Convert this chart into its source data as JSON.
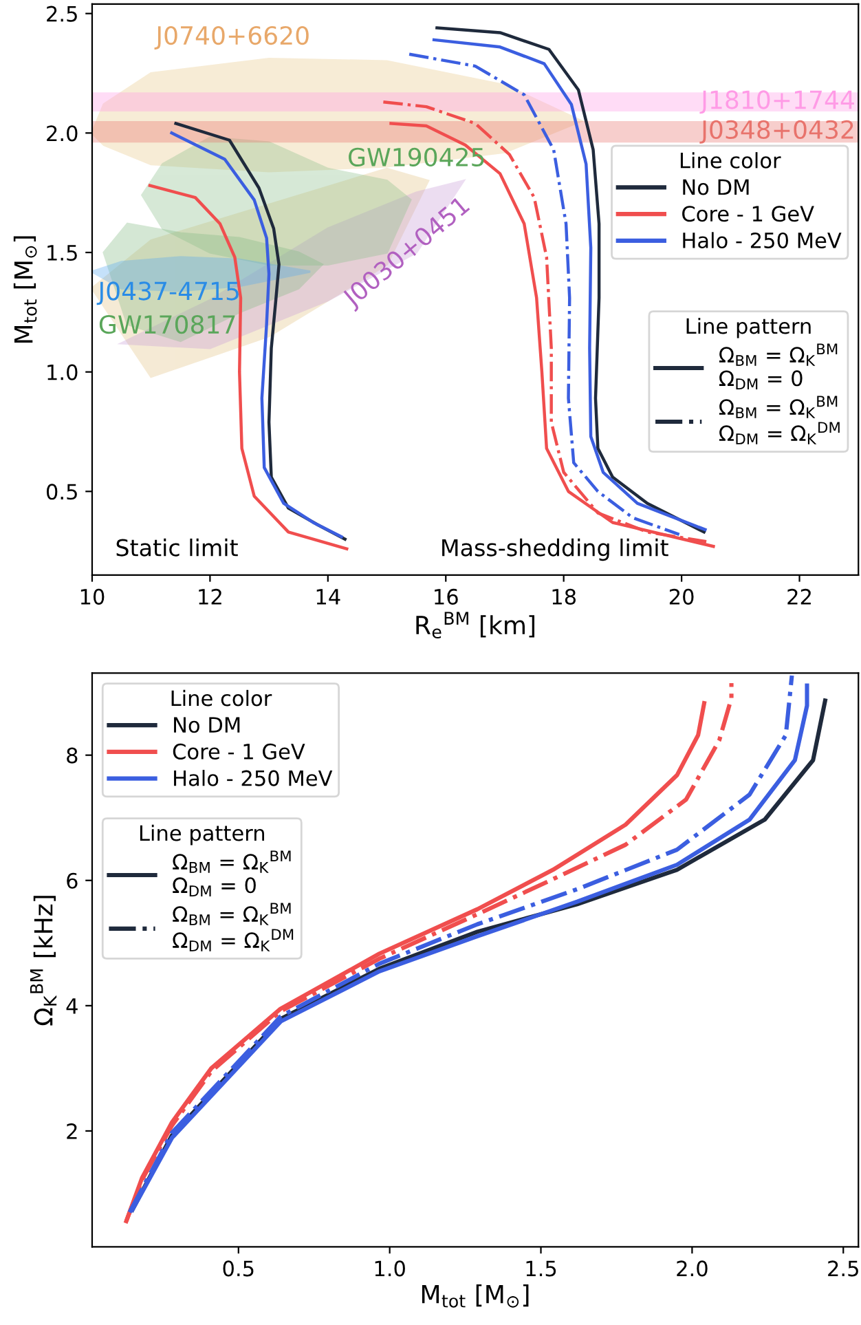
{
  "chart_data": [
    {
      "type": "line",
      "xlabel": "R$_{e}$$^{BM}$ [km]",
      "ylabel": "M$_{tot}$ [M$_{⊙}$]",
      "xlim": [
        10,
        23
      ],
      "ylim": [
        0.15,
        2.54
      ],
      "xticks": [
        10,
        12,
        14,
        16,
        18,
        20,
        22
      ],
      "yticks": [
        0.5,
        {
          "value": 1,
          "label": "1.0"
        },
        1.5,
        {
          "value": 2,
          "label": "2.0"
        },
        2.5
      ],
      "grid": false,
      "series": [
        {
          "type": "area",
          "color": "#e8c98a",
          "x": [
            10.0,
            10.2,
            11,
            13,
            15,
            17,
            18.3,
            17,
            15,
            13,
            11,
            10.2
          ],
          "values": [
            2.0,
            2.12,
            2.25,
            2.31,
            2.3,
            2.2,
            2.05,
            1.92,
            1.86,
            1.84,
            1.87,
            1.95
          ]
        },
        {
          "type": "area",
          "color": "#e3c486",
          "x": [
            10,
            11,
            13,
            15,
            15.7,
            15,
            13,
            11
          ],
          "values": [
            1.35,
            1.55,
            1.7,
            1.85,
            1.8,
            1.45,
            1.15,
            0.98
          ]
        },
        {
          "type": "area",
          "color": "#c9a0d8",
          "x": [
            10.5,
            12,
            14,
            15.5,
            16.3,
            15.5,
            14,
            12
          ],
          "values": [
            1.12,
            1.3,
            1.6,
            1.75,
            1.8,
            1.5,
            1.3,
            1.1
          ]
        },
        {
          "type": "area",
          "color": "#8cc08c",
          "x": [
            10.85,
            11.2,
            12,
            13,
            14,
            15,
            15.4,
            15,
            14,
            13,
            12,
            11.2
          ],
          "values": [
            1.74,
            1.87,
            1.98,
            1.96,
            1.85,
            1.8,
            1.72,
            1.5,
            1.45,
            1.45,
            1.5,
            1.6
          ]
        },
        {
          "type": "area",
          "color": "#86bb86",
          "x": [
            10.2,
            10.6,
            11.5,
            12.5,
            13.5,
            13.9,
            13.5,
            12.5,
            11.5,
            10.6
          ],
          "values": [
            1.5,
            1.62,
            1.58,
            1.56,
            1.5,
            1.45,
            1.35,
            1.25,
            1.13,
            1.2
          ]
        },
        {
          "type": "area",
          "color": "#5aaaf0",
          "x": [
            10,
            10.5,
            11.5,
            12.5,
            13.7,
            12.5,
            11.5,
            10.5
          ],
          "values": [
            1.42,
            1.46,
            1.48,
            1.47,
            1.42,
            1.36,
            1.34,
            1.35
          ]
        },
        {
          "name": "No DM",
          "color": "#1f2a3c",
          "line_style": "solid",
          "x": [
            11.42,
            12.33,
            12.83,
            13.08,
            13.17,
            13.12,
            13.04,
            13.0,
            13.04,
            13.33,
            13.83,
            14.29
          ],
          "values": [
            2.04,
            1.97,
            1.77,
            1.6,
            1.45,
            1.31,
            1.1,
            0.79,
            0.56,
            0.43,
            0.36,
            0.3
          ]
        },
        {
          "name": "Core - 1 GeV",
          "color": "#f04e4e",
          "line_style": "solid",
          "x": [
            10.98,
            11.75,
            12.17,
            12.42,
            12.52,
            12.5,
            12.54,
            12.75,
            13.33,
            14.32
          ],
          "values": [
            1.78,
            1.73,
            1.62,
            1.48,
            1.31,
            1.0,
            0.68,
            0.48,
            0.33,
            0.26
          ]
        },
        {
          "name": "Halo - 250 MeV",
          "color": "#3b5ee0",
          "line_style": "solid",
          "x": [
            11.35,
            12.25,
            12.75,
            12.96,
            13.0,
            12.96,
            12.88,
            12.92,
            13.25,
            13.75,
            14.23
          ],
          "values": [
            2.0,
            1.89,
            1.72,
            1.56,
            1.41,
            1.2,
            0.89,
            0.6,
            0.45,
            0.37,
            0.31
          ]
        },
        {
          "color": "#1f2a3c",
          "line_style": "solid",
          "x": [
            15.85,
            16.92,
            17.75,
            18.25,
            18.5,
            18.6,
            18.6,
            18.54,
            18.58,
            18.83,
            19.42,
            20.38
          ],
          "values": [
            2.44,
            2.42,
            2.35,
            2.18,
            1.93,
            1.62,
            1.31,
            0.89,
            0.68,
            0.56,
            0.45,
            0.33
          ]
        },
        {
          "color": "#3b5ee0",
          "line_style": "solid",
          "x": [
            15.8,
            16.92,
            17.67,
            18.13,
            18.38,
            18.46,
            18.44,
            18.46,
            18.67,
            19.25,
            20.4
          ],
          "values": [
            2.39,
            2.36,
            2.29,
            2.12,
            1.87,
            1.52,
            1.1,
            0.73,
            0.58,
            0.45,
            0.34
          ]
        },
        {
          "color": "#3b5ee0",
          "line_style": "dashdot",
          "x": [
            15.38,
            16.5,
            17.33,
            17.83,
            18.04,
            18.1,
            18.08,
            18.17,
            18.58,
            19.17,
            19.96
          ],
          "values": [
            2.33,
            2.28,
            2.16,
            1.93,
            1.62,
            1.31,
            0.89,
            0.62,
            0.5,
            0.39,
            0.32
          ]
        },
        {
          "color": "#f04e4e",
          "line_style": "dashdot",
          "x": [
            14.94,
            15.67,
            16.5,
            17.08,
            17.5,
            17.71,
            17.79,
            17.79,
            18.0,
            18.58,
            19.42,
            20.42
          ],
          "values": [
            2.13,
            2.11,
            2.04,
            1.91,
            1.73,
            1.48,
            1.1,
            0.79,
            0.58,
            0.41,
            0.33,
            0.29
          ]
        },
        {
          "color": "#f04e4e",
          "line_style": "solid",
          "x": [
            15.07,
            15.67,
            16.33,
            16.92,
            17.33,
            17.54,
            17.63,
            17.71,
            18.08,
            18.83,
            20.54
          ],
          "values": [
            2.04,
            2.03,
            1.95,
            1.83,
            1.62,
            1.31,
            1.0,
            0.68,
            0.5,
            0.37,
            0.27
          ]
        }
      ],
      "bands": [
        {
          "axis": "y",
          "from": 2.09,
          "to": 2.17,
          "label": "J1810+1744",
          "color": "#ff9be6"
        },
        {
          "axis": "y",
          "from": 1.96,
          "to": 2.05,
          "label": "J0348+0432",
          "color": "#e8736c"
        }
      ],
      "annotations": [
        "J0740+6620",
        "GW190425",
        {
          "text": "J0437-4715",
          "x": 10.1,
          "y": 1.38
        },
        "GW170817",
        {
          "text": "J0030+0451",
          "x": 15.2,
          "y": 1.55
        },
        "Static limit",
        "Mass-shedding limit",
        "Line pattern",
        "Ω$_{BM}$ = Ω$_{K}$$^{BM}$\nΩ$_{DM}$ = 0",
        "Ω$_{BM}$ = Ω$_{K}$$^{BM}$\nΩ$_{DM}$ = Ω$_{K}$$^{DM}$"
      ],
      "legend": "right",
      "legend_title": "Line color"
    },
    {
      "type": "line",
      "xlabel": "M$_{tot}$ [M$_{⊙}$]",
      "ylabel": "Ω$_{K}$$^{BM}$ [kHz]",
      "xlim": [
        0.016,
        2.55
      ],
      "ylim": [
        0.15,
        9.31
      ],
      "xticks": [
        0.5,
        {
          "value": 1,
          "label": "1.0"
        },
        1.5,
        {
          "value": 2,
          "label": "2.0"
        },
        2.5
      ],
      "yticks": [
        2,
        4,
        6,
        8
      ],
      "grid": false,
      "series": [
        {
          "name": "No DM",
          "color": "#1f2a3c",
          "line_style": "solid",
          "x": [
            0.149,
            0.28,
            0.64,
            0.966,
            1.29,
            1.62,
            1.95,
            2.24,
            2.4,
            2.44
          ],
          "values": [
            0.74,
            1.93,
            3.79,
            4.59,
            5.18,
            5.62,
            6.17,
            6.97,
            7.92,
            8.87
          ]
        },
        {
          "name": "Core - 1 GeV",
          "color": "#f04e4e",
          "line_style": "solid",
          "x": [
            0.129,
            0.181,
            0.279,
            0.41,
            0.639,
            0.966,
            1.29,
            1.54,
            1.78,
            1.95,
            2.02,
            2.04
          ],
          "values": [
            0.56,
            1.25,
            2.13,
            3.0,
            3.95,
            4.83,
            5.54,
            6.17,
            6.89,
            7.68,
            8.32,
            8.83
          ]
        },
        {
          "name": "Halo - 250 MeV",
          "color": "#3b5ee0",
          "line_style": "solid",
          "x": [
            0.149,
            0.28,
            0.64,
            0.966,
            1.29,
            1.62,
            1.95,
            2.19,
            2.34,
            2.38,
            2.38
          ],
          "values": [
            0.74,
            1.89,
            3.75,
            4.55,
            5.11,
            5.66,
            6.25,
            6.97,
            7.92,
            8.79,
            9.11
          ]
        },
        {
          "color": "#f04e4e",
          "line_style": "dashdot",
          "x": [
            0.129,
            0.181,
            0.279,
            0.41,
            0.639,
            0.966,
            1.29,
            1.54,
            1.78,
            1.98,
            2.09,
            2.13,
            2.13
          ],
          "values": [
            0.56,
            1.22,
            2.08,
            2.95,
            3.91,
            4.75,
            5.46,
            6.02,
            6.57,
            7.29,
            8.24,
            8.91,
            9.15
          ]
        },
        {
          "color": "#3b5ee0",
          "line_style": "dashdot",
          "x": [
            0.14,
            0.28,
            0.64,
            0.966,
            1.29,
            1.62,
            1.95,
            2.19,
            2.31,
            2.33
          ],
          "values": [
            0.7,
            1.97,
            3.83,
            4.67,
            5.3,
            5.86,
            6.49,
            7.37,
            8.32,
            9.27
          ]
        }
      ],
      "annotations": [
        "Line pattern",
        "Ω$_{BM}$ = Ω$_{K}$$^{BM}$\nΩ$_{DM}$ = 0",
        "Ω$_{BM}$ = Ω$_{K}$$^{BM}$\nΩ$_{DM}$ = Ω$_{K}$$^{DM}$"
      ],
      "legend": "top left",
      "legend_title": "Line color"
    }
  ]
}
